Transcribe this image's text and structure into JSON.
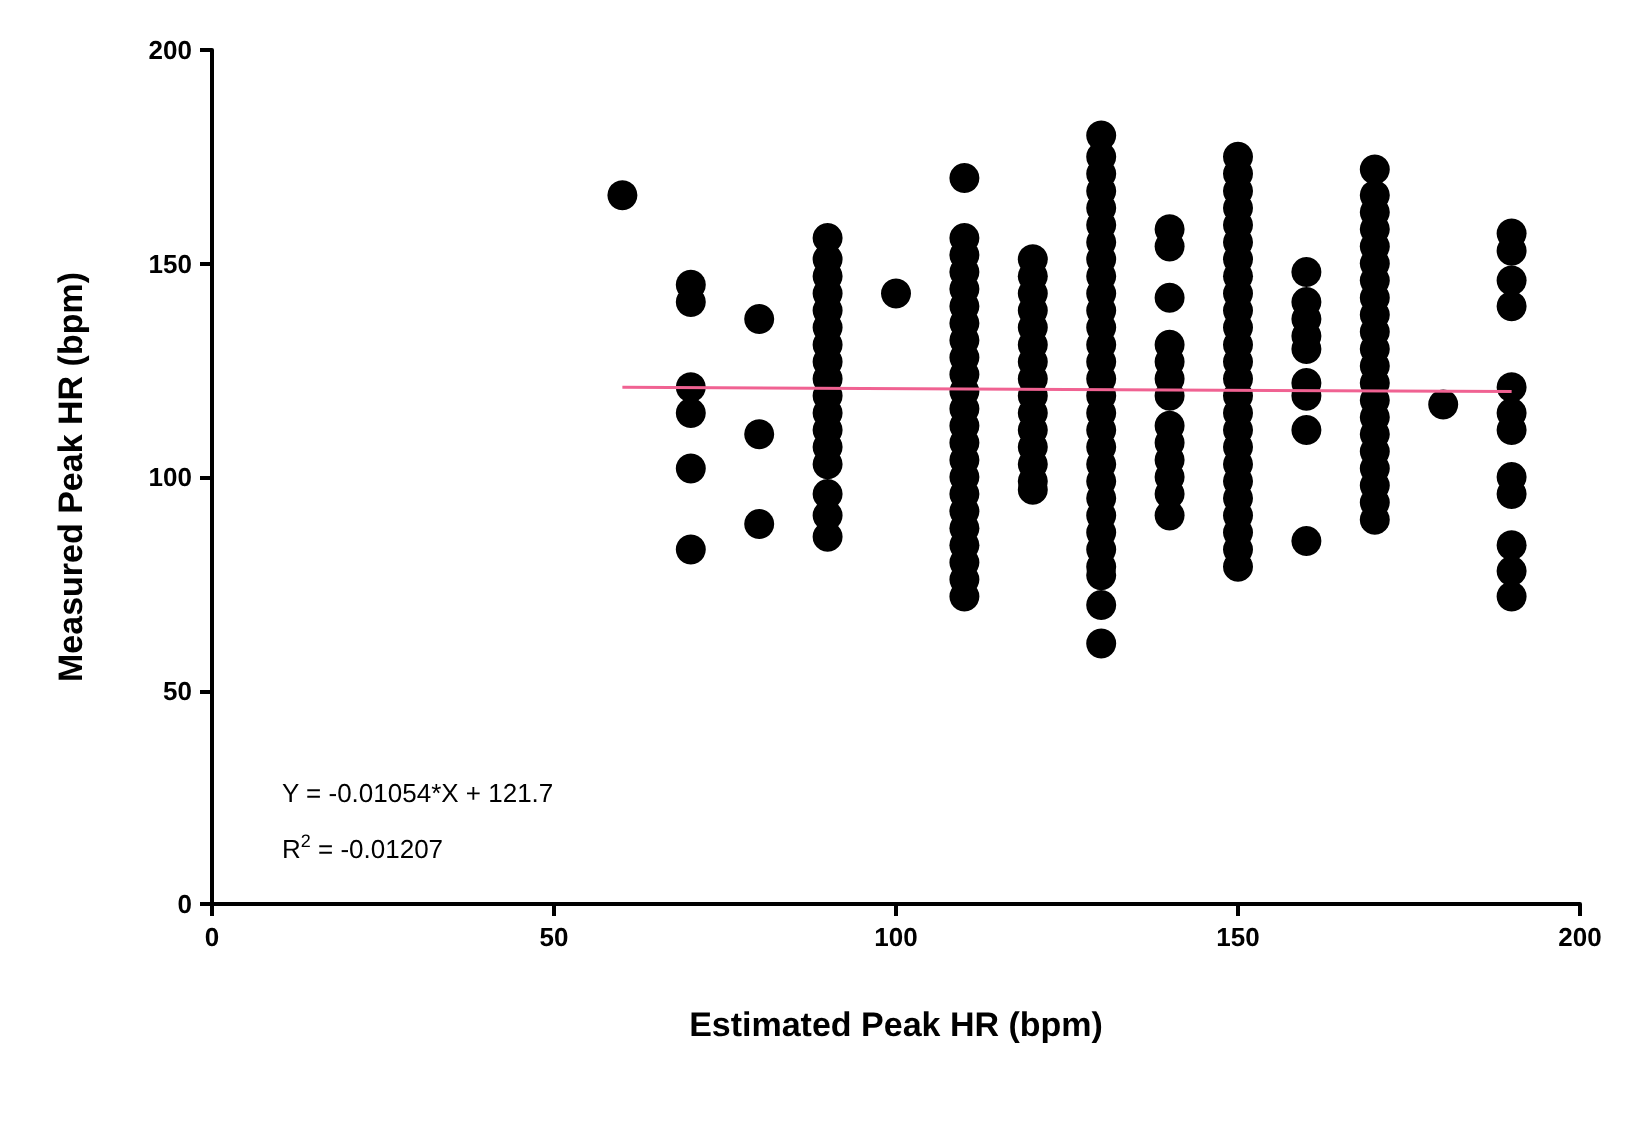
{
  "chart_data": {
    "type": "scatter",
    "xlabel": "Estimated Peak HR (bpm)",
    "ylabel": "Measured Peak HR (bpm)",
    "xlim": [
      0,
      200
    ],
    "xticks": [
      0,
      50,
      100,
      150,
      200
    ],
    "ylim": [
      0,
      200
    ],
    "yticks": [
      0,
      50,
      100,
      150,
      200
    ],
    "grid": false,
    "marker": "circle",
    "annotations": [
      "Y = -0.01054*X + 121.7",
      "R$^{2}$ = -0.01207"
    ],
    "series": [
      {
        "type": "scatter",
        "color": "#000000",
        "x": [
          60,
          70,
          70,
          70,
          70,
          70,
          70,
          80,
          80,
          80,
          90,
          90,
          90,
          90,
          90,
          90,
          90,
          90,
          90,
          90,
          90,
          90,
          90,
          90,
          90,
          90,
          90,
          100,
          110,
          110,
          110,
          110,
          110,
          110,
          110,
          110,
          110,
          110,
          110,
          110,
          110,
          110,
          110,
          110,
          110,
          110,
          110,
          110,
          110,
          110,
          110,
          120,
          120,
          120,
          120,
          120,
          120,
          120,
          120,
          120,
          120,
          120,
          120,
          120,
          120,
          120,
          130,
          130,
          130,
          130,
          130,
          130,
          130,
          130,
          130,
          130,
          130,
          130,
          130,
          130,
          130,
          130,
          130,
          130,
          130,
          130,
          130,
          130,
          130,
          130,
          130,
          130,
          130,
          130,
          130,
          140,
          140,
          140,
          140,
          140,
          140,
          140,
          140,
          140,
          140,
          140,
          140,
          140,
          150,
          150,
          150,
          150,
          150,
          150,
          150,
          150,
          150,
          150,
          150,
          150,
          150,
          150,
          150,
          150,
          150,
          150,
          150,
          150,
          150,
          150,
          150,
          150,
          150,
          160,
          160,
          160,
          160,
          160,
          160,
          160,
          160,
          160,
          170,
          170,
          170,
          170,
          170,
          170,
          170,
          170,
          170,
          170,
          170,
          170,
          170,
          170,
          170,
          170,
          170,
          170,
          170,
          170,
          170,
          180,
          190,
          190,
          190,
          190,
          190,
          190,
          190,
          190,
          190,
          190,
          190,
          190
        ],
        "values": [
          166,
          145,
          141,
          121,
          115,
          102,
          83,
          137,
          110,
          89,
          156,
          151,
          147,
          143,
          139,
          135,
          131,
          127,
          123,
          119,
          115,
          111,
          107,
          103,
          96,
          91,
          86,
          143,
          170,
          156,
          152,
          148,
          144,
          140,
          136,
          132,
          128,
          124,
          120,
          116,
          112,
          108,
          104,
          100,
          96,
          92,
          88,
          84,
          80,
          76,
          72,
          151,
          147,
          143,
          139,
          135,
          131,
          127,
          123,
          119,
          115,
          111,
          107,
          103,
          99,
          97,
          180,
          175,
          171,
          167,
          163,
          159,
          155,
          151,
          147,
          143,
          139,
          135,
          131,
          127,
          123,
          119,
          115,
          111,
          107,
          103,
          99,
          95,
          91,
          87,
          83,
          79,
          77,
          70,
          61,
          158,
          154,
          142,
          131,
          127,
          123,
          119,
          112,
          108,
          104,
          100,
          96,
          91,
          175,
          171,
          167,
          163,
          159,
          155,
          151,
          147,
          143,
          139,
          135,
          131,
          127,
          123,
          119,
          115,
          111,
          107,
          103,
          99,
          95,
          91,
          87,
          83,
          79,
          148,
          141,
          137,
          133,
          130,
          122,
          119,
          111,
          85,
          172,
          166,
          162,
          158,
          154,
          150,
          146,
          142,
          138,
          134,
          130,
          126,
          122,
          118,
          114,
          110,
          106,
          102,
          98,
          94,
          90,
          117,
          157,
          153,
          146,
          140,
          121,
          115,
          111,
          100,
          96,
          84,
          78,
          72
        ]
      },
      {
        "type": "line",
        "color": "#f06292",
        "marker": "none",
        "x": [
          60,
          190
        ],
        "values": [
          121,
          120
        ]
      }
    ]
  }
}
